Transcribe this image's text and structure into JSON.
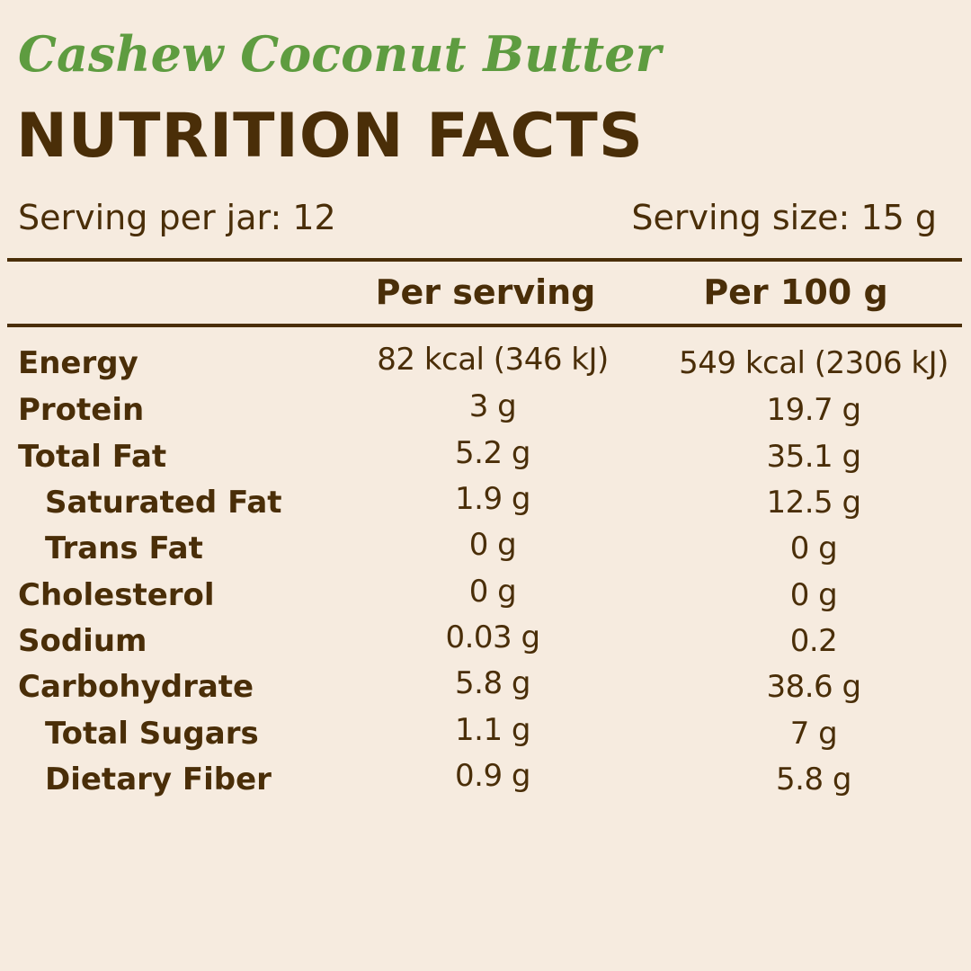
{
  "product_name": "Cashew Coconut Butter",
  "title": "NUTRITION FACTS",
  "serving_per_jar": "Serving per jar: 12",
  "serving_size": "Serving size: 15 g",
  "columns": {
    "per_serving": "Per serving",
    "per_100g": "Per 100 g"
  },
  "rows": [
    {
      "label": "Energy",
      "per_serving": "82 kcal (346 kJ)",
      "per_100g": "549 kcal (2306 kJ)",
      "indent": false
    },
    {
      "label": "Protein",
      "per_serving": "3 g",
      "per_100g": "19.7 g",
      "indent": false
    },
    {
      "label": "Total Fat",
      "per_serving": "5.2 g",
      "per_100g": "35.1 g",
      "indent": false
    },
    {
      "label": "Saturated Fat",
      "per_serving": "1.9 g",
      "per_100g": "12.5 g",
      "indent": true
    },
    {
      "label": "Trans Fat",
      "per_serving": "0 g",
      "per_100g": "0 g",
      "indent": true
    },
    {
      "label": "Cholesterol",
      "per_serving": "0 g",
      "per_100g": "0 g",
      "indent": false
    },
    {
      "label": "Sodium",
      "per_serving": "0.03 g",
      "per_100g": "0.2",
      "indent": false
    },
    {
      "label": "Carbohydrate",
      "per_serving": "5.8 g",
      "per_100g": "38.6 g",
      "indent": false
    },
    {
      "label": "Total Sugars",
      "per_serving": "1.1 g",
      "per_100g": "7 g",
      "indent": true
    },
    {
      "label": "Dietary Fiber",
      "per_serving": "0.9 g",
      "per_100g": "5.8 g",
      "indent": true
    }
  ],
  "colors": {
    "background": "#f6ebdf",
    "text": "#4a2e08",
    "accent_green": "#5e9c40"
  }
}
